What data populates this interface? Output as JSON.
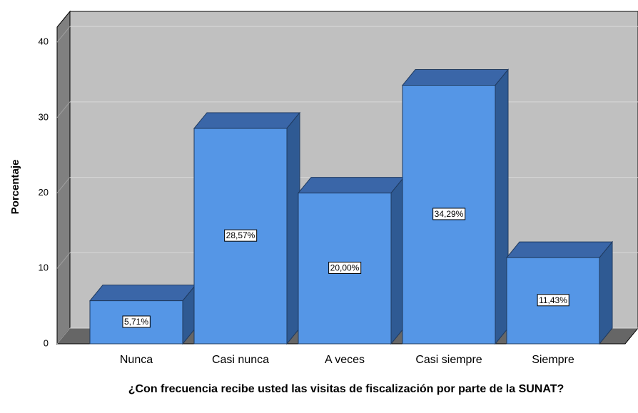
{
  "chart_data": {
    "type": "bar3d",
    "categories": [
      "Nunca",
      "Casi nunca",
      "A veces",
      "Casi siempre",
      "Siempre"
    ],
    "values": [
      5.71,
      28.57,
      20.0,
      34.29,
      11.43
    ],
    "value_labels": [
      "5,71%",
      "28,57%",
      "20,00%",
      "34,29%",
      "11,43%"
    ],
    "color": "#5596e6",
    "ylabel": "Porcentaje",
    "xlabel": "¿Con frecuencia recibe usted las visitas de fiscalización por parte de la SUNAT?",
    "ylim": [
      0,
      42
    ],
    "yticks": [
      0,
      10,
      20,
      30,
      40
    ],
    "grid": true
  }
}
